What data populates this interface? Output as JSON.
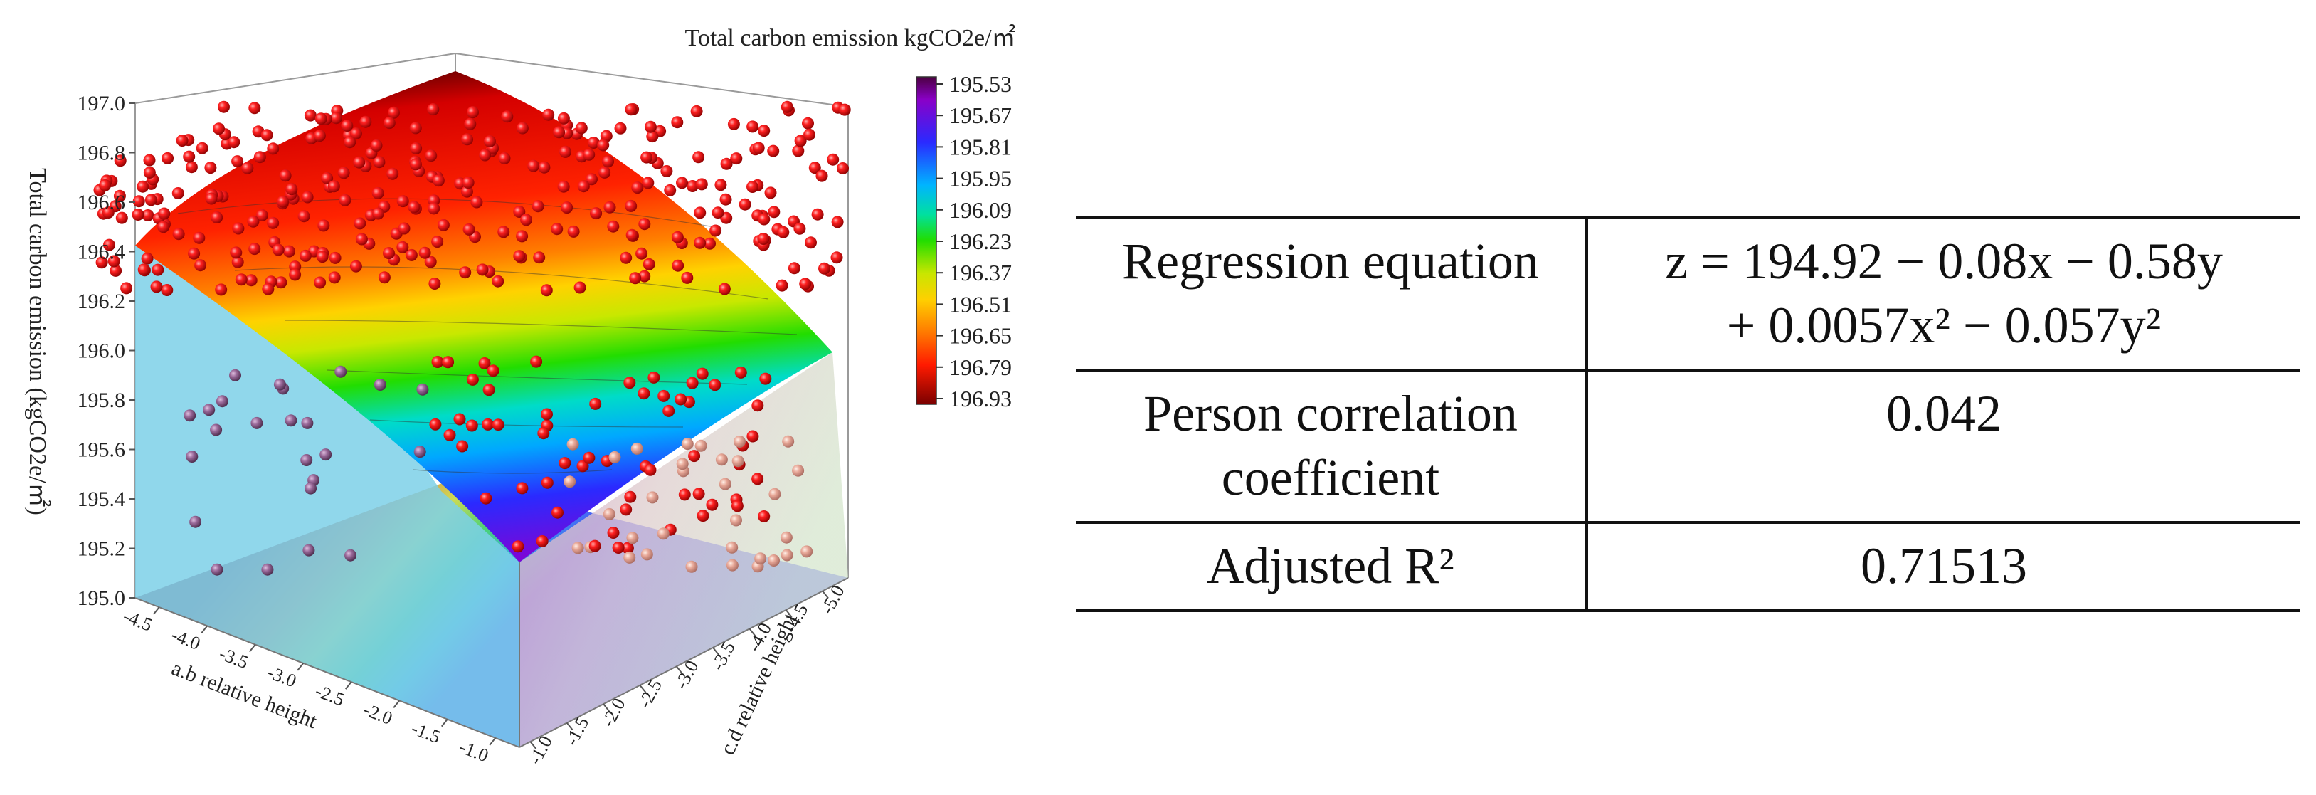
{
  "chart_data": {
    "type": "surface3d",
    "title": "Total carbon emission kgCO2e/㎡",
    "zlabel": "Total carbon emission (kgCO2e/㎡)",
    "xlabel": "a.b relative height",
    "ylabel": "c.d relative height",
    "zlim": [
      195.0,
      197.0
    ],
    "xlim": [
      -5.0,
      -1.0
    ],
    "ylim": [
      -5.0,
      -1.0
    ],
    "z_ticks": [
      "195.0",
      "195.2",
      "195.4",
      "195.6",
      "195.8",
      "196.0",
      "196.2",
      "196.4",
      "196.6",
      "196.8",
      "197.0"
    ],
    "x_ticks": [
      "-4.5",
      "-4.0",
      "-3.5",
      "-3.0",
      "-2.5",
      "-2.0",
      "-1.5",
      "-1.0"
    ],
    "y_ticks": [
      "-1.0",
      "-1.5",
      "-2.0",
      "-2.5",
      "-3.0",
      "-3.5",
      "-4.0",
      "-4.5",
      "-5.0"
    ],
    "colorbar_ticks": [
      "195.53",
      "195.67",
      "195.81",
      "195.95",
      "196.09",
      "196.23",
      "196.37",
      "196.51",
      "196.65",
      "196.79",
      "196.93"
    ],
    "colorbar_colors": [
      "#4b0040",
      "#8a00c8",
      "#2a2aff",
      "#00b4ff",
      "#00e0a0",
      "#22dd00",
      "#c8e600",
      "#ffd000",
      "#ff7a00",
      "#ff1a00",
      "#7a0000"
    ],
    "regression": {
      "intercept": 194.92,
      "a": -0.08,
      "b": -0.58,
      "c": 0.0057,
      "d": -0.057
    },
    "scatter_points": 420
  },
  "table": {
    "rows": [
      {
        "label": "Regression equation",
        "value_line1": "z = 194.92 − 0.08x − 0.58y",
        "value_line2": "+ 0.0057x² − 0.057y²"
      },
      {
        "label_line1": "Person correlation",
        "label_line2": "coefficient",
        "value": "0.042"
      },
      {
        "label": "Adjusted R²",
        "value": "0.71513"
      }
    ]
  }
}
